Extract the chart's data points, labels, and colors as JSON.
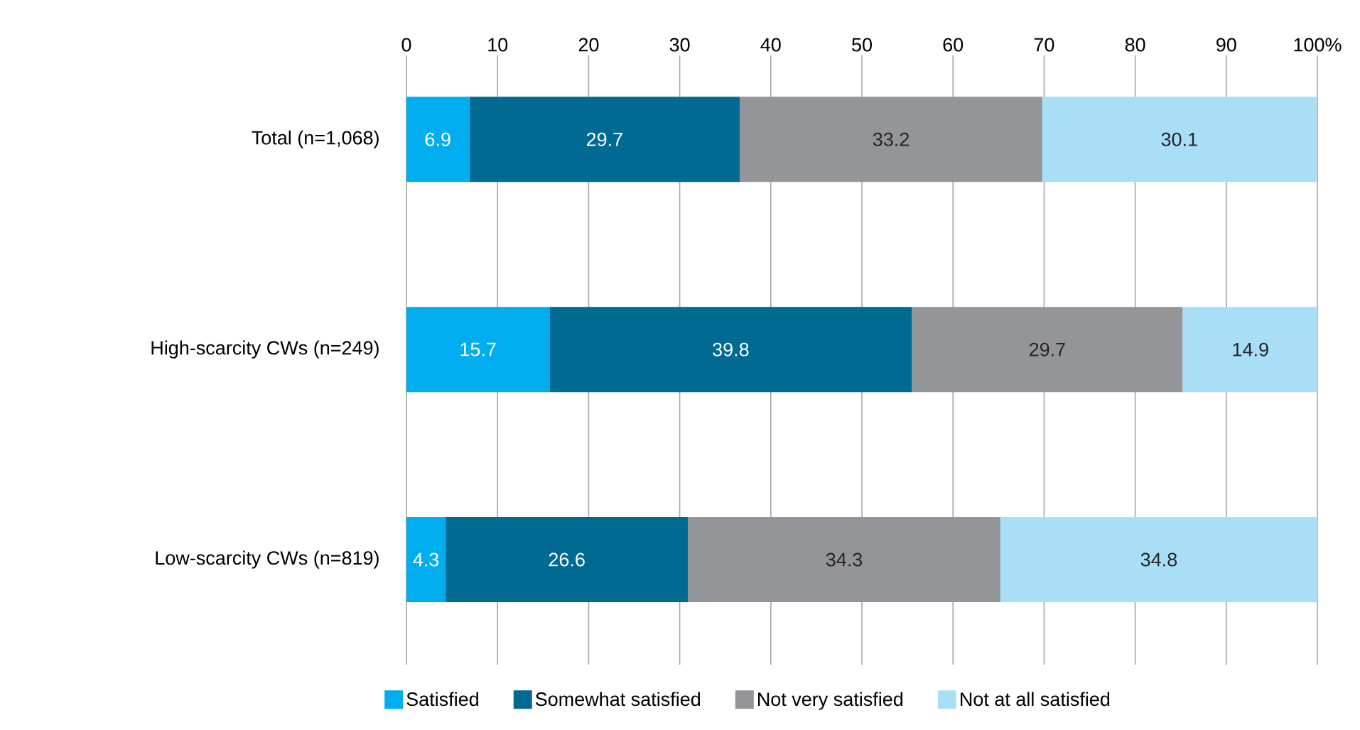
{
  "chart_data": {
    "type": "bar",
    "orientation": "horizontal",
    "stacked": true,
    "data_labels": true,
    "grid": "x",
    "legend": "bottom",
    "categories": [
      "Total (n=1,068)",
      "High-scarcity CWs (n=249)",
      "Low-scarcity CWs (n=819)"
    ],
    "series": [
      {
        "name": "Satisfied",
        "color": "#00aeef",
        "values": [
          6.9,
          15.7,
          4.3
        ]
      },
      {
        "name": "Somewhat satisfied",
        "color": "#006a93",
        "values": [
          29.7,
          39.8,
          26.6
        ]
      },
      {
        "name": "Not very satisfied",
        "color": "#939598",
        "values": [
          33.2,
          29.7,
          34.3
        ]
      },
      {
        "name": "Not at all satisfied",
        "color": "#a8dff7",
        "values": [
          30.1,
          14.9,
          34.8
        ]
      }
    ],
    "xlim": [
      0,
      100
    ],
    "xticks": [
      0,
      10,
      20,
      30,
      40,
      50,
      60,
      70,
      80,
      90,
      {
        "value": 100,
        "label": "100%"
      }
    ]
  }
}
